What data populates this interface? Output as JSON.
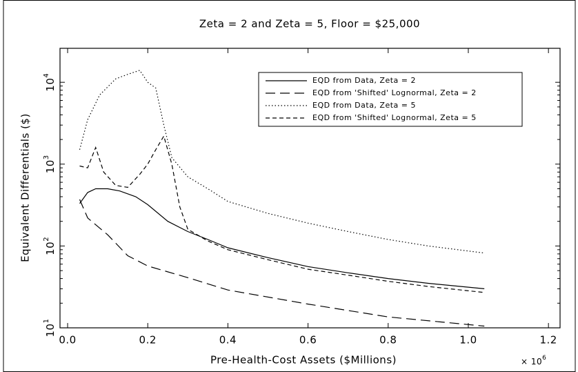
{
  "chart_data": {
    "type": "line",
    "title": "Zeta = 2 and Zeta = 5, Floor = $25,000",
    "xlabel": "Pre-Health-Cost Assets ($Millions)",
    "ylabel": "Equivalent Differentials ($)",
    "x_multiplier": {
      "base": "× 10",
      "exponent": "6"
    },
    "xlim": [
      -0.019,
      1.229
    ],
    "xticks": [
      {
        "value": 0,
        "label": "0.0"
      },
      0.2,
      0.4,
      0.6,
      0.8,
      {
        "value": 1,
        "label": "1.0"
      },
      1.2
    ],
    "ylim": [
      10,
      26000
    ],
    "yscale": "log",
    "yticks": [
      {
        "value": 10,
        "label": "10",
        "exponent": "1"
      },
      {
        "value": 100,
        "label": "10",
        "exponent": "2"
      },
      {
        "value": 1000,
        "label": "10",
        "exponent": "3"
      },
      {
        "value": 10000,
        "label": "10",
        "exponent": "4"
      }
    ],
    "legend": "upper right",
    "series": [
      {
        "name": "EQD from Data, Zeta = 2",
        "color": "#000000",
        "dash": "solid",
        "x": [
          0.03,
          0.05,
          0.07,
          0.1,
          0.13,
          0.17,
          0.2,
          0.25,
          0.3,
          0.35,
          0.4,
          0.5,
          0.6,
          0.7,
          0.8,
          0.9,
          1.04
        ],
        "values": [
          330,
          450,
          500,
          500,
          470,
          400,
          320,
          200,
          150,
          120,
          95,
          72,
          56,
          47,
          40,
          35,
          30
        ]
      },
      {
        "name": "EQD from 'Shifted' Lognormal, Zeta = 2",
        "color": "#000000",
        "dash": "long-dash",
        "x": [
          0.03,
          0.05,
          0.1,
          0.15,
          0.2,
          0.3,
          0.4,
          0.6,
          0.8,
          1.04
        ],
        "values": [
          370,
          220,
          137,
          76,
          57,
          41,
          29,
          19.5,
          13.6,
          10.5
        ]
      },
      {
        "name": "EQD from Data, Zeta = 5",
        "color": "#000000",
        "dash": "dotted",
        "x": [
          0.03,
          0.05,
          0.08,
          0.12,
          0.15,
          0.18,
          0.2,
          0.22,
          0.24,
          0.26,
          0.3,
          0.35,
          0.4,
          0.5,
          0.6,
          0.7,
          0.8,
          0.9,
          1.04
        ],
        "values": [
          1500,
          3500,
          7000,
          11000,
          12500,
          14000,
          10000,
          8500,
          3000,
          1200,
          700,
          500,
          350,
          250,
          190,
          150,
          120,
          100,
          82
        ]
      },
      {
        "name": "EQD from 'Shifted' Lognormal, Zeta = 5",
        "color": "#000000",
        "dash": "dashed",
        "x": [
          0.03,
          0.05,
          0.07,
          0.09,
          0.12,
          0.15,
          0.18,
          0.2,
          0.22,
          0.24,
          0.26,
          0.28,
          0.3,
          0.35,
          0.4,
          0.5,
          0.6,
          0.7,
          0.8,
          0.9,
          1.04
        ],
        "values": [
          950,
          900,
          1600,
          800,
          550,
          520,
          750,
          1000,
          1500,
          2200,
          1000,
          300,
          160,
          115,
          90,
          68,
          52,
          44,
          37,
          32,
          27
        ]
      }
    ]
  }
}
